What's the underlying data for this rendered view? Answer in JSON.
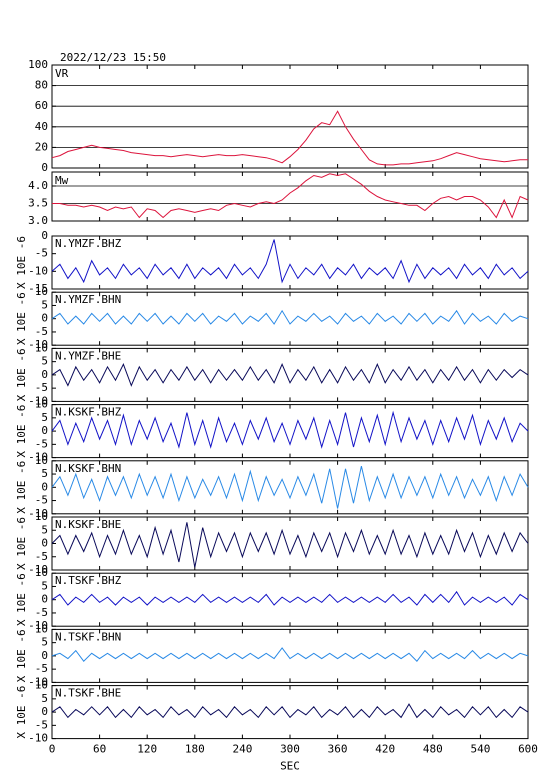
{
  "chart_data": [
    {
      "type": "line",
      "title": "2022/12/23 15:50",
      "label": "VR",
      "color": "#dc143c",
      "grid": true,
      "x": [
        0,
        10,
        20,
        30,
        40,
        50,
        60,
        70,
        80,
        90,
        100,
        110,
        120,
        130,
        140,
        150,
        160,
        170,
        180,
        190,
        200,
        210,
        220,
        230,
        240,
        250,
        260,
        270,
        280,
        290,
        300,
        310,
        320,
        330,
        340,
        350,
        360,
        370,
        380,
        390,
        400,
        410,
        420,
        430,
        440,
        450,
        460,
        470,
        480,
        490,
        500,
        510,
        520,
        530,
        540,
        550,
        560,
        570,
        580,
        590,
        600
      ],
      "values": [
        10,
        12,
        16,
        18,
        20,
        22,
        20,
        19,
        18,
        17,
        15,
        14,
        13,
        12,
        12,
        11,
        12,
        13,
        12,
        11,
        12,
        13,
        12,
        12,
        13,
        12,
        11,
        10,
        8,
        5,
        11,
        18,
        27,
        38,
        44,
        42,
        55,
        40,
        28,
        18,
        8,
        4,
        3,
        3,
        4,
        4,
        5,
        6,
        7,
        9,
        12,
        15,
        13,
        11,
        9,
        8,
        7,
        6,
        7,
        8,
        8
      ],
      "xlim": [
        0,
        600
      ],
      "xticks": [
        0,
        60,
        120,
        180,
        240,
        300,
        360,
        420,
        480,
        540,
        600
      ],
      "ylim": [
        0,
        100
      ],
      "yticks": [
        0,
        20,
        40,
        60,
        80,
        100
      ]
    },
    {
      "type": "line",
      "label": "Mw",
      "color": "#dc143c",
      "grid": true,
      "x": [
        0,
        10,
        20,
        30,
        40,
        50,
        60,
        70,
        80,
        90,
        100,
        110,
        120,
        130,
        140,
        150,
        160,
        170,
        180,
        190,
        200,
        210,
        220,
        230,
        240,
        250,
        260,
        270,
        280,
        290,
        300,
        310,
        320,
        330,
        340,
        350,
        360,
        370,
        380,
        390,
        400,
        410,
        420,
        430,
        440,
        450,
        460,
        470,
        480,
        490,
        500,
        510,
        520,
        530,
        540,
        550,
        560,
        570,
        580,
        590,
        600
      ],
      "values": [
        3.5,
        3.5,
        3.45,
        3.45,
        3.4,
        3.45,
        3.4,
        3.3,
        3.4,
        3.35,
        3.4,
        3.1,
        3.35,
        3.3,
        3.1,
        3.3,
        3.35,
        3.3,
        3.25,
        3.3,
        3.35,
        3.3,
        3.45,
        3.5,
        3.45,
        3.4,
        3.5,
        3.55,
        3.5,
        3.6,
        3.8,
        3.95,
        4.15,
        4.3,
        4.25,
        4.35,
        4.3,
        4.35,
        4.2,
        4.05,
        3.85,
        3.7,
        3.6,
        3.55,
        3.5,
        3.45,
        3.45,
        3.3,
        3.5,
        3.65,
        3.7,
        3.6,
        3.7,
        3.7,
        3.6,
        3.4,
        3.1,
        3.6,
        3.1,
        3.7,
        3.6
      ],
      "xlim": [
        0,
        600
      ],
      "xticks": [
        0,
        60,
        120,
        180,
        240,
        300,
        360,
        420,
        480,
        540,
        600
      ],
      "ylim": [
        3.0,
        4.4
      ],
      "yticks": [
        {
          "value": 3,
          "label": "3.0"
        },
        3.5,
        {
          "value": 4,
          "label": "4.0"
        }
      ]
    },
    {
      "type": "waveform",
      "xlabel": "SEC",
      "ylabel": "X 10E -6",
      "x": [
        0,
        10,
        20,
        30,
        40,
        50,
        60,
        70,
        80,
        90,
        100,
        110,
        120,
        130,
        140,
        150,
        160,
        170,
        180,
        190,
        200,
        210,
        220,
        230,
        240,
        250,
        260,
        270,
        280,
        290,
        300,
        310,
        320,
        330,
        340,
        350,
        360,
        370,
        380,
        390,
        400,
        410,
        420,
        430,
        440,
        450,
        460,
        470,
        480,
        490,
        500,
        510,
        520,
        530,
        540,
        550,
        560,
        570,
        580,
        590,
        600
      ],
      "xlim": [
        0,
        600
      ],
      "xticks": [
        0,
        60,
        120,
        180,
        240,
        300,
        360,
        420,
        480,
        540,
        600
      ],
      "series": [
        {
          "name": "N.YMZF.BHZ",
          "color": "#1414c8",
          "ylim": [
            -15,
            0
          ],
          "yticks": [
            -15,
            -10,
            -5,
            0
          ],
          "values": [
            -10,
            -8,
            -12,
            -9,
            -13,
            -7,
            -11,
            -9,
            -12,
            -8,
            -11,
            -9,
            -12,
            -8,
            -11,
            -9,
            -12,
            -8,
            -12,
            -9,
            -11,
            -9,
            -12,
            -8,
            -11,
            -9,
            -12,
            -8,
            -1,
            -13,
            -8,
            -12,
            -9,
            -11,
            -8,
            -12,
            -9,
            -11,
            -8,
            -12,
            -9,
            -11,
            -9,
            -12,
            -7,
            -13,
            -8,
            -12,
            -9,
            -11,
            -9,
            -12,
            -8,
            -11,
            -9,
            -12,
            -8,
            -11,
            -9,
            -12,
            -10
          ]
        },
        {
          "name": "N.YMZF.BHN",
          "color": "#2a8ae6",
          "ylim": [
            -10,
            10
          ],
          "yticks": [
            -10,
            -5,
            0,
            5,
            10
          ],
          "values": [
            0,
            2,
            -2,
            1,
            -2,
            2,
            -1,
            2,
            -2,
            1,
            -2,
            2,
            -1,
            2,
            -2,
            1,
            -2,
            2,
            -1,
            2,
            -2,
            1,
            -1,
            2,
            -2,
            1,
            -1,
            2,
            -2,
            3,
            -2,
            1,
            -1,
            2,
            -1,
            1,
            -2,
            2,
            -1,
            1,
            -2,
            2,
            -1,
            1,
            -2,
            2,
            -1,
            2,
            -2,
            1,
            -1,
            3,
            -2,
            2,
            -1,
            1,
            -2,
            2,
            -1,
            1,
            0
          ]
        },
        {
          "name": "N.YMZF.BHE",
          "color": "#0a0a5a",
          "ylim": [
            -10,
            10
          ],
          "yticks": [
            -10,
            -5,
            0,
            5,
            10
          ],
          "values": [
            0,
            2,
            -4,
            3,
            -2,
            2,
            -3,
            3,
            -2,
            4,
            -4,
            3,
            -2,
            2,
            -3,
            2,
            -2,
            3,
            -2,
            2,
            -3,
            2,
            -2,
            2,
            -2,
            3,
            -2,
            2,
            -3,
            4,
            -3,
            2,
            -2,
            3,
            -3,
            2,
            -3,
            3,
            -2,
            2,
            -3,
            4,
            -3,
            2,
            -2,
            3,
            -2,
            2,
            -3,
            2,
            -2,
            3,
            -2,
            2,
            -3,
            2,
            -2,
            2,
            -1,
            2,
            0
          ]
        },
        {
          "name": "N.KSKF.BHZ",
          "color": "#1414c8",
          "ylim": [
            -10,
            10
          ],
          "yticks": [
            -10,
            -5,
            0,
            5,
            10
          ],
          "values": [
            0,
            4,
            -5,
            3,
            -4,
            5,
            -3,
            4,
            -5,
            6,
            -5,
            4,
            -3,
            5,
            -4,
            3,
            -6,
            7,
            -5,
            4,
            -6,
            5,
            -4,
            3,
            -5,
            4,
            -3,
            5,
            -4,
            3,
            -5,
            4,
            -3,
            5,
            -6,
            4,
            -5,
            7,
            -6,
            5,
            -4,
            6,
            -5,
            7,
            -4,
            5,
            -3,
            4,
            -5,
            4,
            -4,
            5,
            -3,
            6,
            -5,
            4,
            -3,
            5,
            -4,
            3,
            0
          ]
        },
        {
          "name": "N.KSKF.BHN",
          "color": "#2a8ae6",
          "ylim": [
            -10,
            10
          ],
          "yticks": [
            -10,
            -5,
            0,
            5,
            10
          ],
          "values": [
            0,
            4,
            -3,
            5,
            -4,
            3,
            -5,
            4,
            -3,
            4,
            -4,
            5,
            -3,
            4,
            -4,
            5,
            -5,
            4,
            -4,
            3,
            -3,
            4,
            -4,
            5,
            -5,
            6,
            -5,
            4,
            -3,
            3,
            -4,
            4,
            -3,
            5,
            -6,
            7,
            -8,
            7,
            -6,
            8,
            -5,
            4,
            -4,
            5,
            -4,
            4,
            -3,
            4,
            -4,
            5,
            -3,
            4,
            -4,
            3,
            -3,
            4,
            -5,
            4,
            -3,
            5,
            0
          ]
        },
        {
          "name": "N.KSKF.BHE",
          "color": "#0a0a5a",
          "ylim": [
            -10,
            10
          ],
          "yticks": [
            -10,
            -5,
            0,
            5,
            10
          ],
          "values": [
            0,
            3,
            -4,
            3,
            -3,
            4,
            -5,
            3,
            -4,
            5,
            -4,
            3,
            -5,
            6,
            -4,
            5,
            -7,
            8,
            -9,
            6,
            -5,
            4,
            -3,
            4,
            -5,
            4,
            -3,
            4,
            -4,
            5,
            -4,
            3,
            -5,
            4,
            -3,
            4,
            -5,
            4,
            -3,
            5,
            -4,
            3,
            -4,
            5,
            -4,
            3,
            -5,
            4,
            -4,
            3,
            -4,
            5,
            -3,
            4,
            -5,
            3,
            -4,
            4,
            -3,
            4,
            0
          ]
        },
        {
          "name": "N.TSKF.BHZ",
          "color": "#1414c8",
          "ylim": [
            -10,
            10
          ],
          "yticks": [
            -10,
            -5,
            0,
            5,
            10
          ],
          "values": [
            0,
            2,
            -2,
            1,
            -1,
            2,
            -1,
            1,
            -2,
            1,
            -1,
            1,
            -2,
            1,
            -1,
            1,
            -1,
            1,
            -1,
            2,
            -1,
            1,
            -1,
            1,
            -1,
            1,
            -1,
            2,
            -2,
            1,
            -1,
            1,
            -1,
            1,
            -1,
            2,
            -1,
            1,
            -1,
            1,
            -1,
            1,
            -1,
            2,
            -1,
            1,
            -2,
            2,
            -1,
            2,
            -1,
            3,
            -2,
            1,
            -1,
            1,
            -1,
            1,
            -2,
            2,
            0
          ]
        },
        {
          "name": "N.TSKF.BHN",
          "color": "#2a8ae6",
          "ylim": [
            -10,
            10
          ],
          "yticks": [
            -10,
            -5,
            0,
            5,
            10
          ],
          "values": [
            0,
            1,
            -1,
            2,
            -2,
            1,
            -1,
            1,
            -1,
            1,
            -1,
            1,
            -1,
            1,
            -1,
            1,
            -1,
            1,
            -1,
            1,
            -1,
            1,
            -1,
            1,
            -1,
            1,
            -1,
            1,
            -1,
            3,
            -1,
            1,
            -1,
            1,
            -1,
            1,
            -1,
            1,
            -1,
            1,
            -1,
            1,
            -1,
            1,
            -1,
            1,
            -2,
            2,
            -1,
            1,
            -1,
            1,
            -1,
            2,
            -1,
            1,
            -1,
            1,
            -1,
            1,
            0
          ]
        },
        {
          "name": "N.TSKF.BHE",
          "color": "#0a0a5a",
          "ylim": [
            -10,
            10
          ],
          "yticks": [
            -10,
            -5,
            0,
            5,
            10
          ],
          "values": [
            0,
            2,
            -2,
            1,
            -1,
            2,
            -1,
            2,
            -2,
            1,
            -2,
            2,
            -1,
            1,
            -2,
            2,
            -1,
            1,
            -2,
            2,
            -1,
            1,
            -2,
            2,
            -1,
            1,
            -2,
            2,
            -1,
            2,
            -2,
            1,
            -1,
            2,
            -2,
            1,
            -1,
            2,
            -2,
            1,
            -2,
            2,
            -1,
            1,
            -2,
            3,
            -2,
            1,
            -2,
            2,
            -1,
            1,
            -2,
            2,
            -1,
            2,
            -2,
            1,
            -2,
            2,
            0
          ]
        }
      ]
    }
  ]
}
